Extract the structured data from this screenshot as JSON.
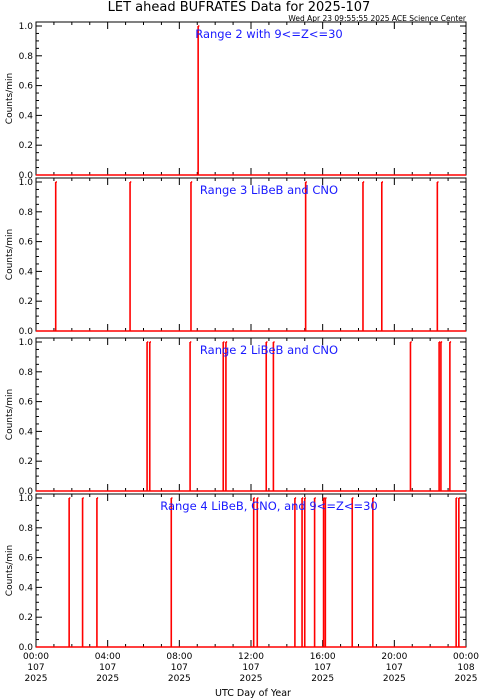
{
  "title": "LET ahead BUFRATES Data for 2025-107",
  "timestamp": "Wed Apr 23 09:55:55 2025 ACE Science Center",
  "xlabel": "UTC Day of Year",
  "colors": {
    "data": "#ff0000",
    "panel_title": "#1a1aff",
    "axes": "#000000"
  },
  "chart_data": [
    {
      "type": "line",
      "title": "Range 2 with 9<=Z<=30",
      "ylabel": "Counts/min",
      "ylim": [
        0,
        1.0
      ],
      "yticks": [
        "0.0",
        "0.2",
        "0.4",
        "0.6",
        "0.8",
        "1.0"
      ],
      "xlim_hours": [
        0,
        24
      ],
      "spikes_hour_utc": [
        9.05
      ]
    },
    {
      "type": "line",
      "title": "Range 3 LiBeB and CNO",
      "ylabel": "Counts/min",
      "ylim": [
        0,
        1.0
      ],
      "yticks": [
        "0.0",
        "0.2",
        "0.4",
        "0.6",
        "0.8",
        "1.0"
      ],
      "xlim_hours": [
        0,
        24
      ],
      "spikes_hour_utc": [
        1.1,
        5.25,
        8.65,
        15.05,
        18.25,
        19.3,
        22.4
      ]
    },
    {
      "type": "line",
      "title": "Range 2 LiBeB and CNO",
      "ylabel": "Counts/min",
      "ylim": [
        0,
        1.0
      ],
      "yticks": [
        "0.0",
        "0.2",
        "0.4",
        "0.6",
        "0.8",
        "1.0"
      ],
      "xlim_hours": [
        0,
        24
      ],
      "spikes_hour_utc": [
        6.2,
        6.35,
        8.6,
        10.45,
        10.6,
        12.85,
        13.25,
        20.9,
        22.5,
        22.6,
        23.1
      ]
    },
    {
      "type": "line",
      "title": "Range 4 LiBeB, CNO, and 9<=Z<=30",
      "ylabel": "Counts/min",
      "ylim": [
        0,
        1.0
      ],
      "yticks": [
        "0.0",
        "0.2",
        "0.4",
        "0.6",
        "0.8",
        "1.0"
      ],
      "xlim_hours": [
        0,
        24
      ],
      "spikes_hour_utc": [
        1.85,
        2.6,
        3.4,
        7.55,
        12.15,
        12.35,
        14.45,
        14.85,
        15.0,
        15.55,
        16.05,
        16.15,
        17.65,
        18.8,
        23.45,
        23.6
      ]
    }
  ],
  "x_ticks": [
    {
      "time": "00:00",
      "day": "107",
      "year": "2025"
    },
    {
      "time": "04:00",
      "day": "107",
      "year": "2025"
    },
    {
      "time": "08:00",
      "day": "107",
      "year": "2025"
    },
    {
      "time": "12:00",
      "day": "107",
      "year": "2025"
    },
    {
      "time": "16:00",
      "day": "107",
      "year": "2025"
    },
    {
      "time": "20:00",
      "day": "107",
      "year": "2025"
    },
    {
      "time": "00:00",
      "day": "108",
      "year": "2025"
    }
  ]
}
